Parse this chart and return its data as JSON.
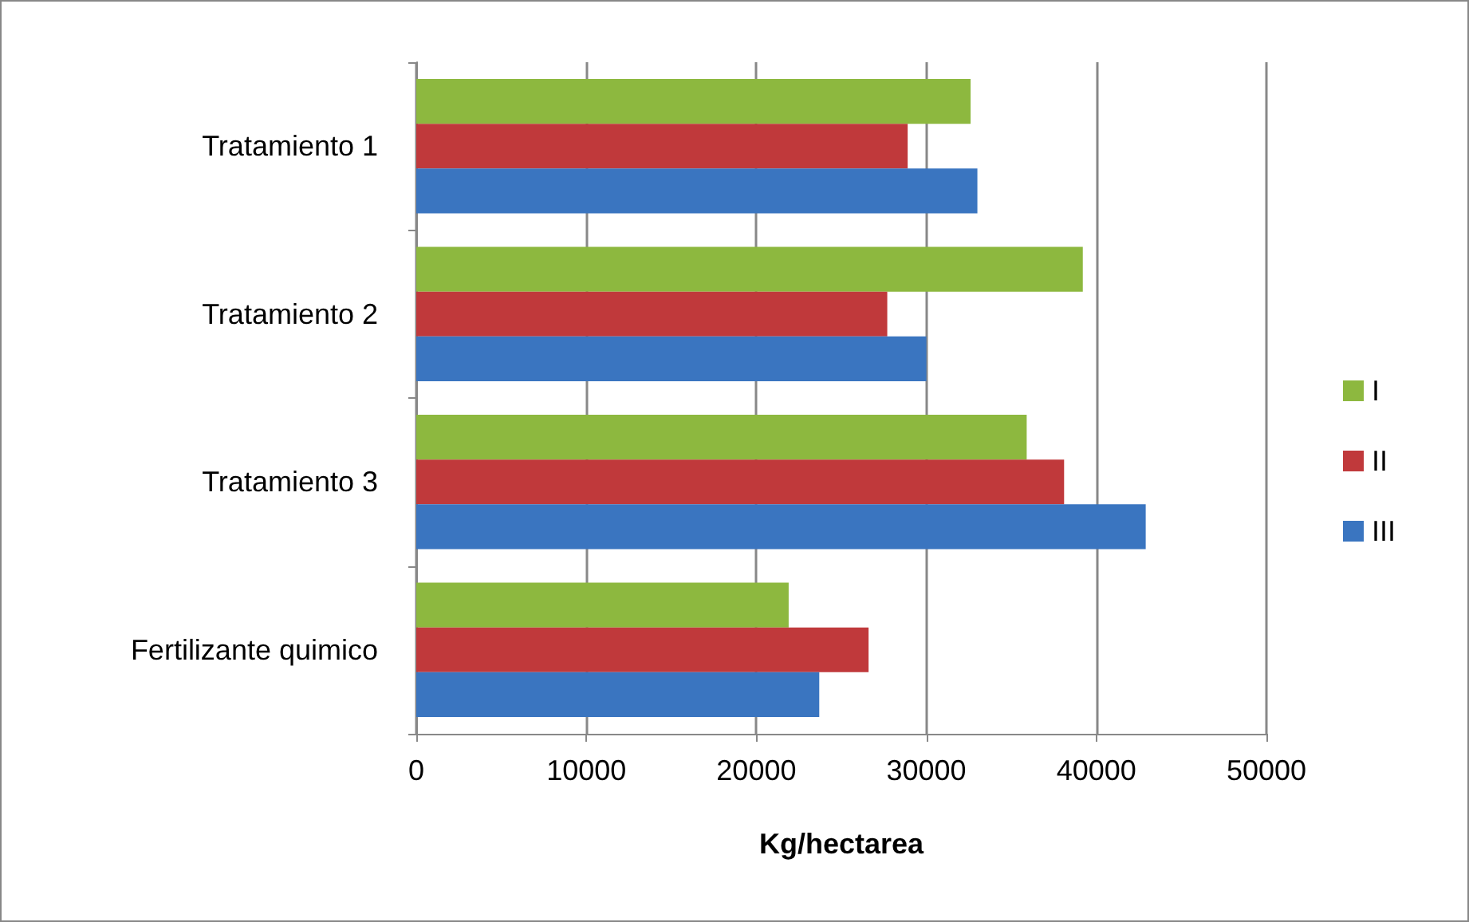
{
  "chart_data": {
    "type": "bar",
    "orientation": "horizontal",
    "xlabel": "Kg/hectarea",
    "categories": [
      "Tratamiento 1",
      "Tratamiento 2",
      "Tratamiento 3",
      "Fertilizante quimico"
    ],
    "series": [
      {
        "name": "I",
        "color": "#8db83f",
        "values": [
          32600,
          39200,
          35900,
          21900
        ]
      },
      {
        "name": "II",
        "color": "#c0393b",
        "values": [
          28900,
          27700,
          38100,
          26600
        ]
      },
      {
        "name": "III",
        "color": "#3a75c0",
        "values": [
          33000,
          30000,
          42900,
          23700
        ]
      }
    ],
    "xlim": [
      0,
      50000
    ],
    "xticks": [
      0,
      10000,
      20000,
      30000,
      40000,
      50000
    ],
    "grid": "x",
    "legend": "right"
  }
}
